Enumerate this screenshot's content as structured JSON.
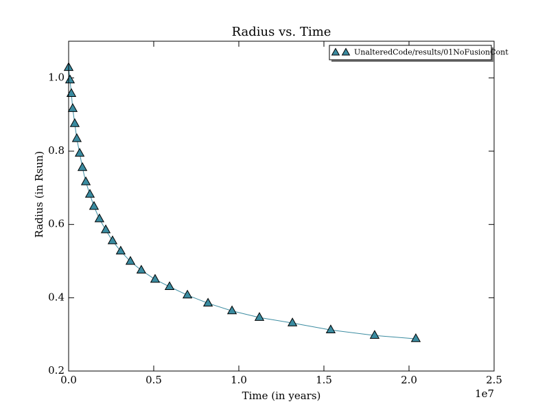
{
  "chart_data": {
    "type": "line",
    "title": "Radius vs. Time",
    "xlabel": "Time (in years)",
    "ylabel": "Radius (in Rsun)",
    "x_offset_label": "1e7",
    "x": [
      0,
      80000,
      160000,
      240000,
      360000,
      480000,
      650000,
      810000,
      1010000,
      1250000,
      1490000,
      1810000,
      2180000,
      2580000,
      3060000,
      3630000,
      4270000,
      5080000,
      5930000,
      6980000,
      8190000,
      9600000,
      11210000,
      13150000,
      15400000,
      17980000,
      20400000
    ],
    "series": [
      {
        "name": "UnalteredCode/results/01NoFusionCont",
        "color": "#3a8ba0",
        "values": [
          1.028,
          0.994,
          0.957,
          0.916,
          0.875,
          0.834,
          0.794,
          0.755,
          0.716,
          0.682,
          0.649,
          0.615,
          0.585,
          0.555,
          0.527,
          0.499,
          0.475,
          0.45,
          0.43,
          0.407,
          0.385,
          0.364,
          0.346,
          0.331,
          0.312,
          0.297,
          0.288
        ]
      }
    ],
    "xlim": [
      0,
      25000000
    ],
    "xticks": [
      {
        "value": 0,
        "label": "0.0"
      },
      {
        "value": 5000000,
        "label": "0.5"
      },
      {
        "value": 10000000,
        "label": "1.0"
      },
      {
        "value": 15000000,
        "label": "1.5"
      },
      {
        "value": 20000000,
        "label": "2.0"
      },
      {
        "value": 25000000,
        "label": "2.5"
      }
    ],
    "ylim": [
      0.2,
      1.1
    ],
    "yticks": [
      0.2,
      0.4,
      0.6,
      0.8,
      {
        "value": 1.0,
        "label": "1.0"
      }
    ],
    "legend": "upper right",
    "marker": "triangle"
  }
}
